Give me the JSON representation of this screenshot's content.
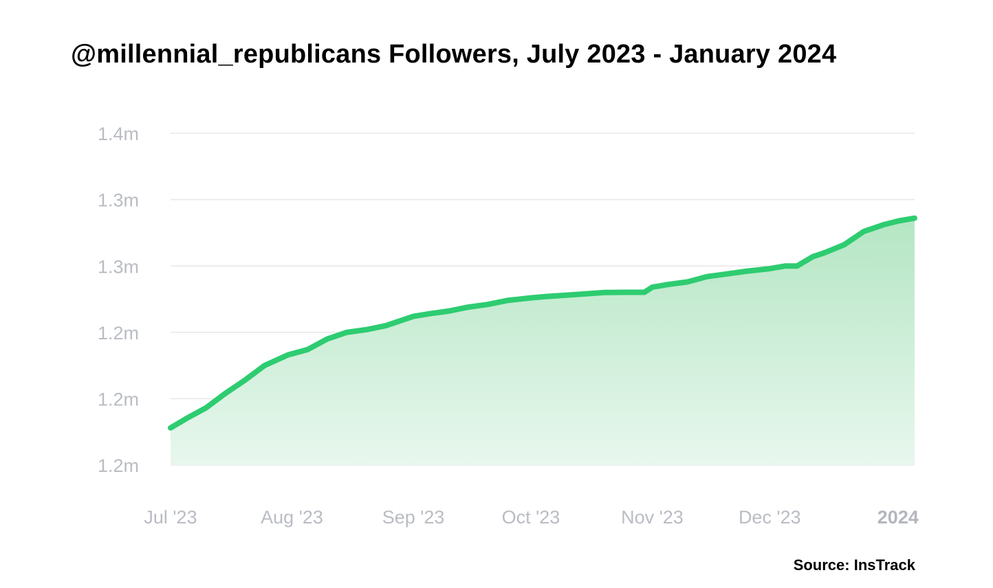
{
  "title": "@millennial_republicans Followers, July 2023 - January 2024",
  "source": "Source: InsTrack",
  "colors": {
    "line": "#2ecc71",
    "fill_top": "#b4e6c3",
    "fill_bottom": "#e8f7ee",
    "grid": "#e6e7ea",
    "tick": "#b9bcc3"
  },
  "chart_data": {
    "type": "area",
    "title": "@millennial_republicans Followers, July 2023 - January 2024",
    "xlabel": "",
    "ylabel": "",
    "ylim": [
      1.15,
      1.4
    ],
    "yticks": [
      1.15,
      1.2,
      1.25,
      1.3,
      1.35,
      1.4
    ],
    "ytick_labels": [
      "1.2m",
      "1.2m",
      "1.2m",
      "1.3m",
      "1.3m",
      "1.4m"
    ],
    "xlim": [
      "2023-07-01",
      "2024-01-07"
    ],
    "xticks": [
      "2023-07-01",
      "2023-08-01",
      "2023-09-01",
      "2023-10-01",
      "2023-11-01",
      "2023-12-01",
      "2024-01-01"
    ],
    "xtick_labels": [
      "Jul '23",
      "Aug '23",
      "Sep '23",
      "Oct '23",
      "Nov '23",
      "Dec '23",
      "2024"
    ],
    "grid": true,
    "legend": "none",
    "series": [
      {
        "x": [
          "2023-07-01",
          "2023-07-05",
          "2023-07-10",
          "2023-07-15",
          "2023-07-20",
          "2023-07-25",
          "2023-07-31",
          "2023-08-05",
          "2023-08-10",
          "2023-08-15",
          "2023-08-20",
          "2023-08-25",
          "2023-09-01",
          "2023-09-05",
          "2023-09-10",
          "2023-09-15",
          "2023-09-20",
          "2023-09-25",
          "2023-10-01",
          "2023-10-05",
          "2023-10-10",
          "2023-10-15",
          "2023-10-20",
          "2023-10-25",
          "2023-10-30",
          "2023-11-01",
          "2023-11-05",
          "2023-11-10",
          "2023-11-15",
          "2023-11-20",
          "2023-11-25",
          "2023-12-01",
          "2023-12-05",
          "2023-12-08",
          "2023-12-12",
          "2023-12-15",
          "2023-12-20",
          "2023-12-25",
          "2023-12-30",
          "2024-01-03",
          "2024-01-07"
        ],
        "values": [
          1.178,
          1.185,
          1.193,
          1.204,
          1.214,
          1.225,
          1.233,
          1.237,
          1.245,
          1.25,
          1.252,
          1.255,
          1.262,
          1.264,
          1.266,
          1.269,
          1.271,
          1.274,
          1.276,
          1.277,
          1.278,
          1.279,
          1.28,
          1.2802,
          1.2802,
          1.284,
          1.286,
          1.288,
          1.292,
          1.294,
          1.296,
          1.298,
          1.3,
          1.3,
          1.307,
          1.31,
          1.316,
          1.326,
          1.331,
          1.334,
          1.336
        ]
      }
    ]
  }
}
